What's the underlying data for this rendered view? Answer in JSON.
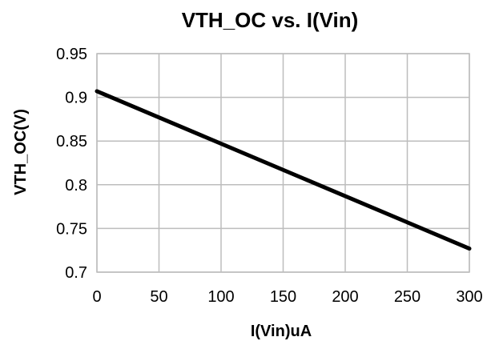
{
  "chart_data": {
    "type": "line",
    "title": "VTH_OC  vs.  I(Vin)",
    "xlabel": "I(Vin)uA",
    "ylabel": "VTH_OC(V)",
    "xlim": [
      0,
      300
    ],
    "ylim": [
      0.7,
      0.95
    ],
    "x_ticks": [
      0,
      50,
      100,
      150,
      200,
      250,
      300
    ],
    "x_tick_labels": [
      "0",
      "50",
      "100",
      "150",
      "200",
      "250",
      "300"
    ],
    "y_ticks": [
      0.7,
      0.75,
      0.8,
      0.85,
      0.9,
      0.95
    ],
    "y_tick_labels": [
      "0.7",
      "0.75",
      "0.8",
      "0.85",
      "0.9",
      "0.95"
    ],
    "grid": true,
    "legend": "none",
    "series": [
      {
        "color": "#000000",
        "points": [
          {
            "x": 0,
            "y": 0.907
          },
          {
            "x": 300,
            "y": 0.727
          }
        ]
      }
    ]
  }
}
